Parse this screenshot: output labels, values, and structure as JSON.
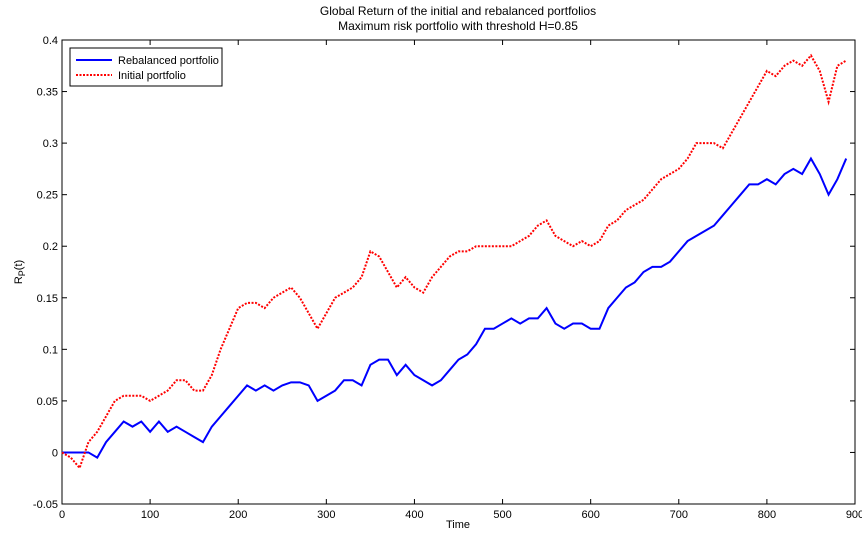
{
  "chart_data": {
    "type": "line",
    "title": "Global Return of the initial and rebalanced portfolios",
    "subtitle": "Maximum risk portfolio with threshold H=0.85",
    "xlabel": "Time",
    "ylabel": [
      "R",
      "P",
      "(t)"
    ],
    "x": [
      0,
      10,
      20,
      30,
      40,
      50,
      60,
      70,
      80,
      90,
      100,
      110,
      120,
      130,
      140,
      150,
      160,
      170,
      180,
      190,
      200,
      210,
      220,
      230,
      240,
      250,
      260,
      270,
      280,
      290,
      300,
      310,
      320,
      330,
      340,
      350,
      360,
      370,
      380,
      390,
      400,
      410,
      420,
      430,
      440,
      450,
      460,
      470,
      480,
      490,
      500,
      510,
      520,
      530,
      540,
      550,
      560,
      570,
      580,
      590,
      600,
      610,
      620,
      630,
      640,
      650,
      660,
      670,
      680,
      690,
      700,
      710,
      720,
      730,
      740,
      750,
      760,
      770,
      780,
      790,
      800,
      810,
      820,
      830,
      840,
      850,
      860,
      870,
      880,
      890
    ],
    "series": [
      {
        "name": "Rebalanced portfolio",
        "color": "#0000ff",
        "dash": "solid",
        "values": [
          0,
          0,
          0,
          0,
          -0.005,
          0.01,
          0.02,
          0.03,
          0.025,
          0.03,
          0.02,
          0.03,
          0.02,
          0.025,
          0.02,
          0.015,
          0.01,
          0.025,
          0.035,
          0.045,
          0.055,
          0.065,
          0.06,
          0.065,
          0.06,
          0.065,
          0.068,
          0.068,
          0.065,
          0.05,
          0.055,
          0.06,
          0.07,
          0.07,
          0.065,
          0.085,
          0.09,
          0.09,
          0.075,
          0.085,
          0.075,
          0.07,
          0.065,
          0.07,
          0.08,
          0.09,
          0.095,
          0.105,
          0.12,
          0.12,
          0.125,
          0.13,
          0.125,
          0.13,
          0.13,
          0.14,
          0.125,
          0.12,
          0.125,
          0.125,
          0.12,
          0.12,
          0.14,
          0.15,
          0.16,
          0.165,
          0.175,
          0.18,
          0.18,
          0.185,
          0.195,
          0.205,
          0.21,
          0.215,
          0.22,
          0.23,
          0.24,
          0.25,
          0.26,
          0.26,
          0.265,
          0.26,
          0.27,
          0.275,
          0.27,
          0.285,
          0.27,
          0.25,
          0.265,
          0.285
        ]
      },
      {
        "name": "Initial portfolio",
        "color": "#ff0000",
        "dash": "dotted",
        "values": [
          0,
          -0.005,
          -0.015,
          0.01,
          0.02,
          0.035,
          0.05,
          0.055,
          0.055,
          0.055,
          0.05,
          0.055,
          0.06,
          0.07,
          0.07,
          0.06,
          0.06,
          0.075,
          0.1,
          0.12,
          0.14,
          0.145,
          0.145,
          0.14,
          0.15,
          0.155,
          0.16,
          0.15,
          0.135,
          0.12,
          0.135,
          0.15,
          0.155,
          0.16,
          0.17,
          0.195,
          0.19,
          0.175,
          0.16,
          0.17,
          0.16,
          0.155,
          0.17,
          0.18,
          0.19,
          0.195,
          0.195,
          0.2,
          0.2,
          0.2,
          0.2,
          0.2,
          0.205,
          0.21,
          0.22,
          0.225,
          0.21,
          0.205,
          0.2,
          0.205,
          0.2,
          0.205,
          0.22,
          0.225,
          0.235,
          0.24,
          0.245,
          0.255,
          0.265,
          0.27,
          0.275,
          0.285,
          0.3,
          0.3,
          0.3,
          0.295,
          0.31,
          0.325,
          0.34,
          0.355,
          0.37,
          0.365,
          0.375,
          0.38,
          0.375,
          0.385,
          0.37,
          0.34,
          0.375,
          0.38
        ]
      }
    ],
    "xlim": [
      0,
      900
    ],
    "xticks": [
      0,
      100,
      200,
      300,
      400,
      500,
      600,
      700,
      800,
      900
    ],
    "ylim": [
      -0.05,
      0.4
    ],
    "yticks": [
      -0.05,
      0,
      0.05,
      0.1,
      0.15,
      0.2,
      0.25,
      0.3,
      0.35,
      0.4
    ],
    "legend": "upper left"
  }
}
